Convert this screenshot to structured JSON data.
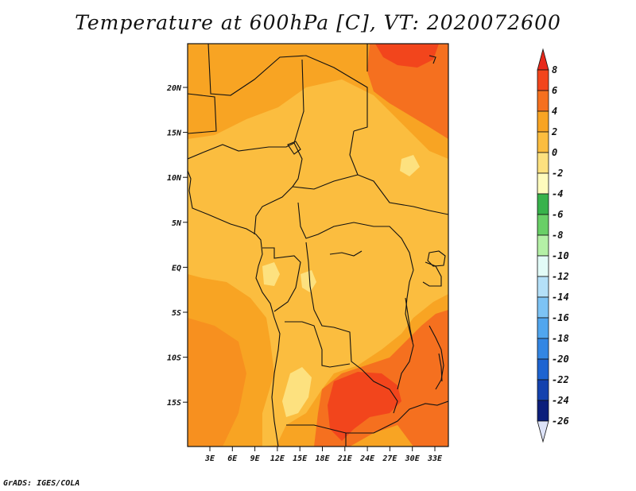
{
  "title": "Temperature at 600hPa [C], VT: 2020072600",
  "credit": "GrADS: IGES/COLA",
  "map": {
    "lat_labels": [
      "20N",
      "15N",
      "10N",
      "5N",
      "EQ",
      "5S",
      "10S",
      "15S"
    ],
    "lon_labels": [
      "3E",
      "6E",
      "9E",
      "12E",
      "15E",
      "18E",
      "21E",
      "24E",
      "27E",
      "30E",
      "33E"
    ]
  },
  "colorbar": {
    "labels": [
      "8",
      "6",
      "4",
      "2",
      "0",
      "-2",
      "-4",
      "-6",
      "-8",
      "-10",
      "-12",
      "-14",
      "-16",
      "-18",
      "-20",
      "-22",
      "-24",
      "-26"
    ],
    "colors": {
      "above_8": "#e8281a",
      "6_8": "#f2451c",
      "4_6": "#f5701f",
      "2_4": "#f8a423",
      "0_2": "#fbbd3f",
      "-2_0": "#fde17f",
      "-4_-2": "#fefbbd",
      "-6_-4": "#38b24b",
      "-8_-6": "#69cf67",
      "-10_-8": "#b4f0a6",
      "-12_-10": "#e2fbf7",
      "-14_-12": "#b4e0f8",
      "-16_-14": "#7dc3f4",
      "-18_-16": "#51a6ee",
      "-20_-18": "#3386e3",
      "-22_-20": "#1d64d1",
      "-24_-22": "#1442ae",
      "-26_-24": "#0b1e7b",
      "below_-26": "#dde3f8"
    }
  }
}
